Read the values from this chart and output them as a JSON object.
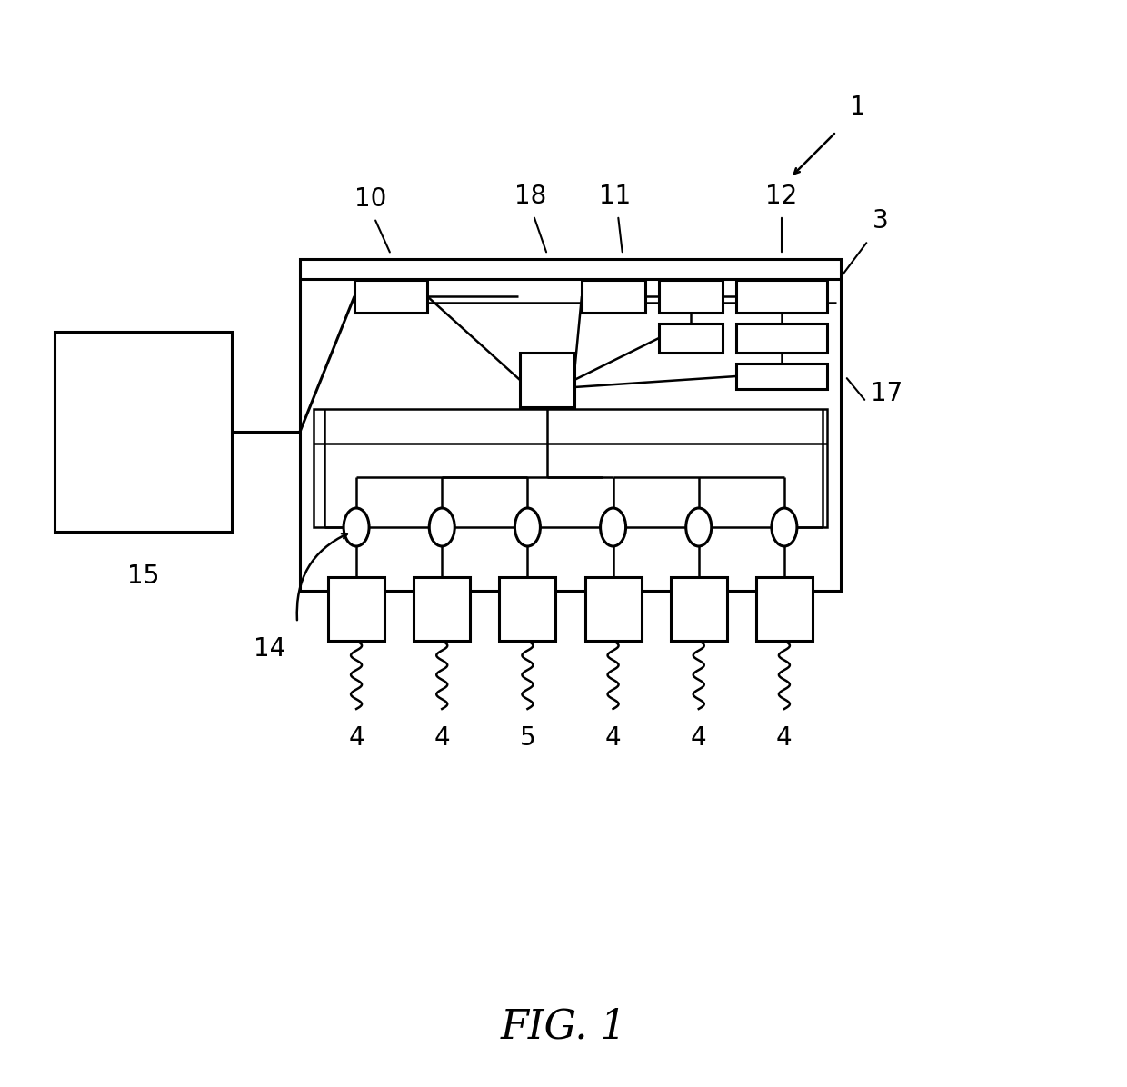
{
  "bg_color": "#ffffff",
  "fig_title": "FIG. 1",
  "port_labels": [
    "4",
    "4",
    "5",
    "4",
    "4",
    "4"
  ]
}
